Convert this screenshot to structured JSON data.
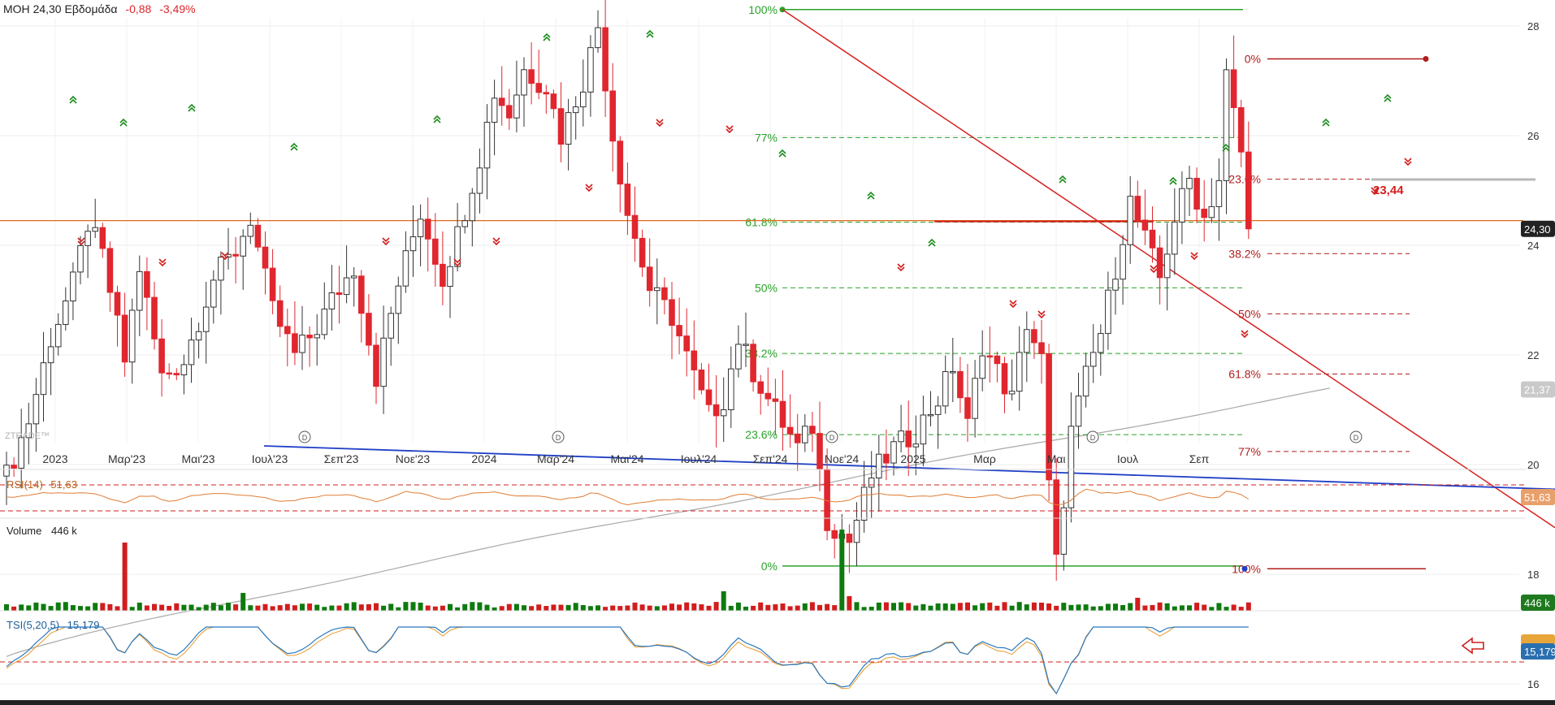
{
  "header": {
    "symbol": "MOH",
    "price": "24,30",
    "period": "Εβδομάδα",
    "change": "-0,88",
    "change_pct": "-3,49%"
  },
  "watermark": "ZTRADE™",
  "colors": {
    "up_candle_fill": "#ffffff",
    "up_candle_border": "#333333",
    "down_candle": "#e0262e",
    "fib_green": "#29a329",
    "fib_red": "#b11c1c",
    "blue_trend": "#1f3fc7",
    "red_trend": "#d62020",
    "ma_line": "#a8a8a8",
    "horizontal_line": "#e06a1e",
    "volume_up": "#0f7a0f",
    "volume_down": "#d21d1d",
    "rsi_line": "#e07d35",
    "tsi_line": "#2a79c0",
    "tsi_signal": "#e89a2b"
  },
  "price_axis": {
    "ticks": [
      "28",
      "26",
      "24",
      "22",
      "20",
      "18",
      "16"
    ],
    "current_price_tag": "24,30",
    "ma_tag": "21,37"
  },
  "time_axis": {
    "labels": [
      "2023",
      "Μαρ'23",
      "Μαι'23",
      "Ιουλ'23",
      "Σεπ'23",
      "Νοε'23",
      "2024",
      "Μαρ'24",
      "Μαι'24",
      "Ιουλ'24",
      "Σεπ'24",
      "Νοε'24",
      "2025",
      "Μαρ",
      "Μαι",
      "Ιουλ",
      "Σεπ"
    ]
  },
  "fib_left": {
    "levels": [
      "100%",
      "77%",
      "61.8%",
      "50%",
      "38.2%",
      "23.6%",
      "0%"
    ]
  },
  "fib_right": {
    "levels": [
      "0%",
      "23.6%",
      "38.2%",
      "50%",
      "61.8%",
      "77%",
      "100%"
    ]
  },
  "annotation_price": "23,44",
  "rsi": {
    "label": "RSI(14)",
    "value": "51,63",
    "tag": "51,63"
  },
  "volume": {
    "label": "Volume",
    "value": "446 k",
    "tag": "446 k"
  },
  "tsi": {
    "label": "TSI(5,20,5)",
    "value": "15,179",
    "tag": "15,179"
  },
  "chart_data": {
    "type": "candlestick",
    "period": "weekly",
    "symbol": "MOH",
    "ylim": [
      15.5,
      28.7
    ],
    "x_labels": [
      "2023",
      "Μαρ'23",
      "Μαι'23",
      "Ιουλ'23",
      "Σεπ'23",
      "Νοε'23",
      "2024",
      "Μαρ'24",
      "Μαι'24",
      "Ιουλ'24",
      "Σεπ'24",
      "Νοε'24",
      "2025",
      "Μαρ",
      "Μαι",
      "Ιουλ",
      "Σεπ"
    ],
    "price_knots": [
      [
        0,
        19.8
      ],
      [
        3,
        20.8
      ],
      [
        6,
        22.3
      ],
      [
        9,
        23.3
      ],
      [
        11,
        24.4
      ],
      [
        13,
        23.8
      ],
      [
        16,
        21.9
      ],
      [
        18,
        23.6
      ],
      [
        21,
        21.6
      ],
      [
        24,
        21.9
      ],
      [
        28,
        23.4
      ],
      [
        31,
        23.9
      ],
      [
        33,
        24.5
      ],
      [
        36,
        22.8
      ],
      [
        39,
        22.0
      ],
      [
        42,
        22.5
      ],
      [
        44,
        23.0
      ],
      [
        47,
        23.6
      ],
      [
        50,
        21.6
      ],
      [
        53,
        23.3
      ],
      [
        56,
        24.6
      ],
      [
        59,
        23.4
      ],
      [
        61,
        24.2
      ],
      [
        64,
        25.6
      ],
      [
        66,
        26.8
      ],
      [
        68,
        26.4
      ],
      [
        70,
        27.2
      ],
      [
        73,
        26.9
      ],
      [
        75,
        26.0
      ],
      [
        78,
        27.0
      ],
      [
        80,
        28.0
      ],
      [
        82,
        26.0
      ],
      [
        84,
        24.6
      ],
      [
        87,
        23.2
      ],
      [
        90,
        22.7
      ],
      [
        93,
        21.6
      ],
      [
        95,
        20.9
      ],
      [
        97,
        21.2
      ],
      [
        99,
        22.3
      ],
      [
        101,
        21.7
      ],
      [
        103,
        21.2
      ],
      [
        107,
        20.3
      ],
      [
        109,
        20.7
      ],
      [
        111,
        19.0
      ],
      [
        114,
        18.6
      ],
      [
        117,
        19.8
      ],
      [
        120,
        20.3
      ],
      [
        123,
        20.6
      ],
      [
        126,
        21.2
      ],
      [
        128,
        21.8
      ],
      [
        130,
        20.7
      ],
      [
        132,
        22.2
      ],
      [
        134,
        21.7
      ],
      [
        136,
        21.2
      ],
      [
        138,
        22.6
      ],
      [
        140,
        21.9
      ],
      [
        141,
        19.6
      ],
      [
        142,
        18.2
      ],
      [
        144,
        20.6
      ],
      [
        146,
        21.6
      ],
      [
        148,
        22.4
      ],
      [
        150,
        23.6
      ],
      [
        152,
        24.8
      ],
      [
        154,
        24.1
      ],
      [
        156,
        23.4
      ],
      [
        158,
        24.5
      ],
      [
        160,
        25.2
      ],
      [
        162,
        24.5
      ],
      [
        164,
        25.2
      ],
      [
        165,
        27.1
      ],
      [
        167,
        25.7
      ],
      [
        168,
        24.3
      ]
    ],
    "series": [
      {
        "name": "MOH",
        "last_close": 24.3
      },
      {
        "name": "RSI(14)",
        "last": 51.63
      },
      {
        "name": "Volume",
        "last": "446 k"
      },
      {
        "name": "TSI(5,20,5)",
        "last": 15.179
      }
    ],
    "fib_left": {
      "high": 28.3,
      "low": 18.15
    },
    "fib_right": {
      "high": 27.4,
      "low": 18.1
    },
    "horizontal_line": 24.45,
    "moving_average": {
      "start": 16.5,
      "end": 21.37
    },
    "rsi_bands": [
      70,
      30
    ]
  }
}
